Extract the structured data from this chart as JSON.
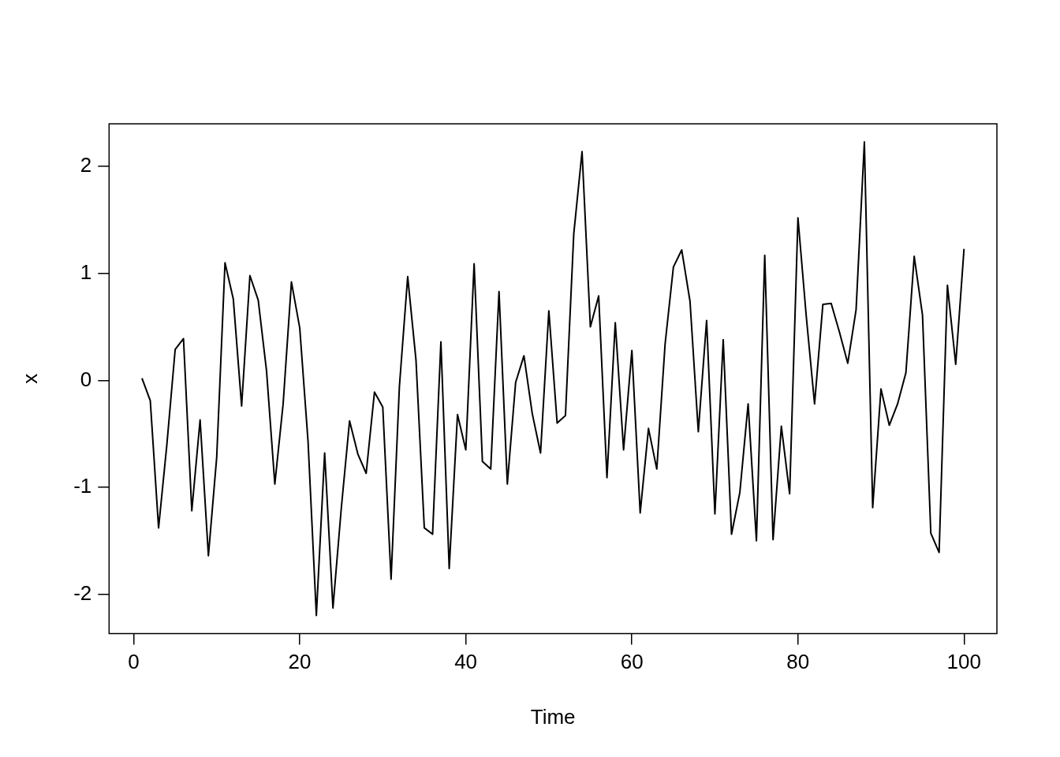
{
  "chart_data": {
    "type": "line",
    "xlabel": "Time",
    "ylabel": "x",
    "xlim": [
      -2.96,
      103.96
    ],
    "ylim": [
      -2.37,
      2.4
    ],
    "xticks": [
      0,
      20,
      40,
      60,
      80,
      100
    ],
    "yticks": [
      -2,
      -1,
      0,
      1,
      2
    ],
    "grid": false,
    "legend": false,
    "marker": "none",
    "line_style": "solid",
    "x": [
      1,
      2,
      3,
      4,
      5,
      6,
      7,
      8,
      9,
      10,
      11,
      12,
      13,
      14,
      15,
      16,
      17,
      18,
      19,
      20,
      21,
      22,
      23,
      24,
      25,
      26,
      27,
      28,
      29,
      30,
      31,
      32,
      33,
      34,
      35,
      36,
      37,
      38,
      39,
      40,
      41,
      42,
      43,
      44,
      45,
      46,
      47,
      48,
      49,
      50,
      51,
      52,
      53,
      54,
      55,
      56,
      57,
      58,
      59,
      60,
      61,
      62,
      63,
      64,
      65,
      66,
      67,
      68,
      69,
      70,
      71,
      72,
      73,
      74,
      75,
      76,
      77,
      78,
      79,
      80,
      81,
      82,
      83,
      84,
      85,
      86,
      87,
      88,
      89,
      90,
      91,
      92,
      93,
      94,
      95,
      96,
      97,
      98,
      99,
      100
    ],
    "series": [
      {
        "color": "#000000",
        "values": [
          0.02,
          -0.19,
          -1.38,
          -0.6,
          0.29,
          0.39,
          -1.22,
          -0.37,
          -1.64,
          -0.72,
          1.1,
          0.76,
          -0.24,
          0.98,
          0.75,
          0.09,
          -0.97,
          -0.22,
          0.92,
          0.49,
          -0.57,
          -2.2,
          -0.68,
          -2.13,
          -1.2,
          -0.38,
          -0.69,
          -0.87,
          -0.11,
          -0.25,
          -1.86,
          -0.06,
          0.97,
          0.19,
          -1.38,
          -1.44,
          0.36,
          -1.76,
          -0.32,
          -0.65,
          1.09,
          -0.76,
          -0.83,
          0.83,
          -0.97,
          -0.02,
          0.23,
          -0.31,
          -0.68,
          0.65,
          -0.4,
          -0.33,
          1.37,
          2.14,
          0.5,
          0.79,
          -0.91,
          0.54,
          -0.65,
          0.28,
          -1.24,
          -0.45,
          -0.83,
          0.34,
          1.06,
          1.22,
          0.74,
          -0.48,
          0.56,
          -1.25,
          0.38,
          -1.44,
          -1.05,
          -0.22,
          -1.5,
          1.17,
          -1.49,
          -0.43,
          -1.06,
          1.52,
          0.6,
          -0.22,
          0.71,
          0.72,
          0.45,
          0.16,
          0.66,
          2.23,
          -1.19,
          -0.08,
          -0.42,
          -0.22,
          0.07,
          1.16,
          0.61,
          -1.43,
          -1.61,
          0.89,
          0.15,
          1.23
        ]
      }
    ]
  }
}
